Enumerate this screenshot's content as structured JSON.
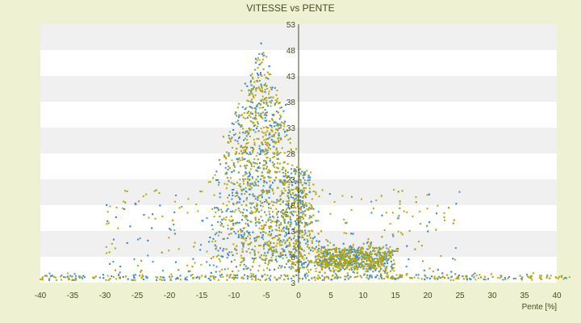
{
  "chart_data": {
    "type": "scatter",
    "title": "VITESSE vs PENTE",
    "xlabel": "Pente [%]",
    "ylabel": "",
    "xlim": [
      -40,
      40
    ],
    "ylim": [
      3,
      53
    ],
    "xticks": [
      -40,
      -35,
      -30,
      -25,
      -20,
      -15,
      -10,
      -5,
      0,
      5,
      10,
      15,
      20,
      25,
      30,
      35,
      40
    ],
    "yticks": [
      3,
      8,
      13,
      18,
      23,
      28,
      33,
      38,
      43,
      48,
      53
    ],
    "grid": "alternating horizontal bands",
    "legend": "none",
    "series": [
      {
        "color": "#3a8ddc"
      },
      {
        "color": "#b8a800"
      }
    ],
    "note_density": "Dense point cloud: peak of points near slope -8% to -3% reaching speed ~52; flattened cluster at slope 2%-12% with speed 5-10; many points along speed ~4 across all slopes"
  }
}
